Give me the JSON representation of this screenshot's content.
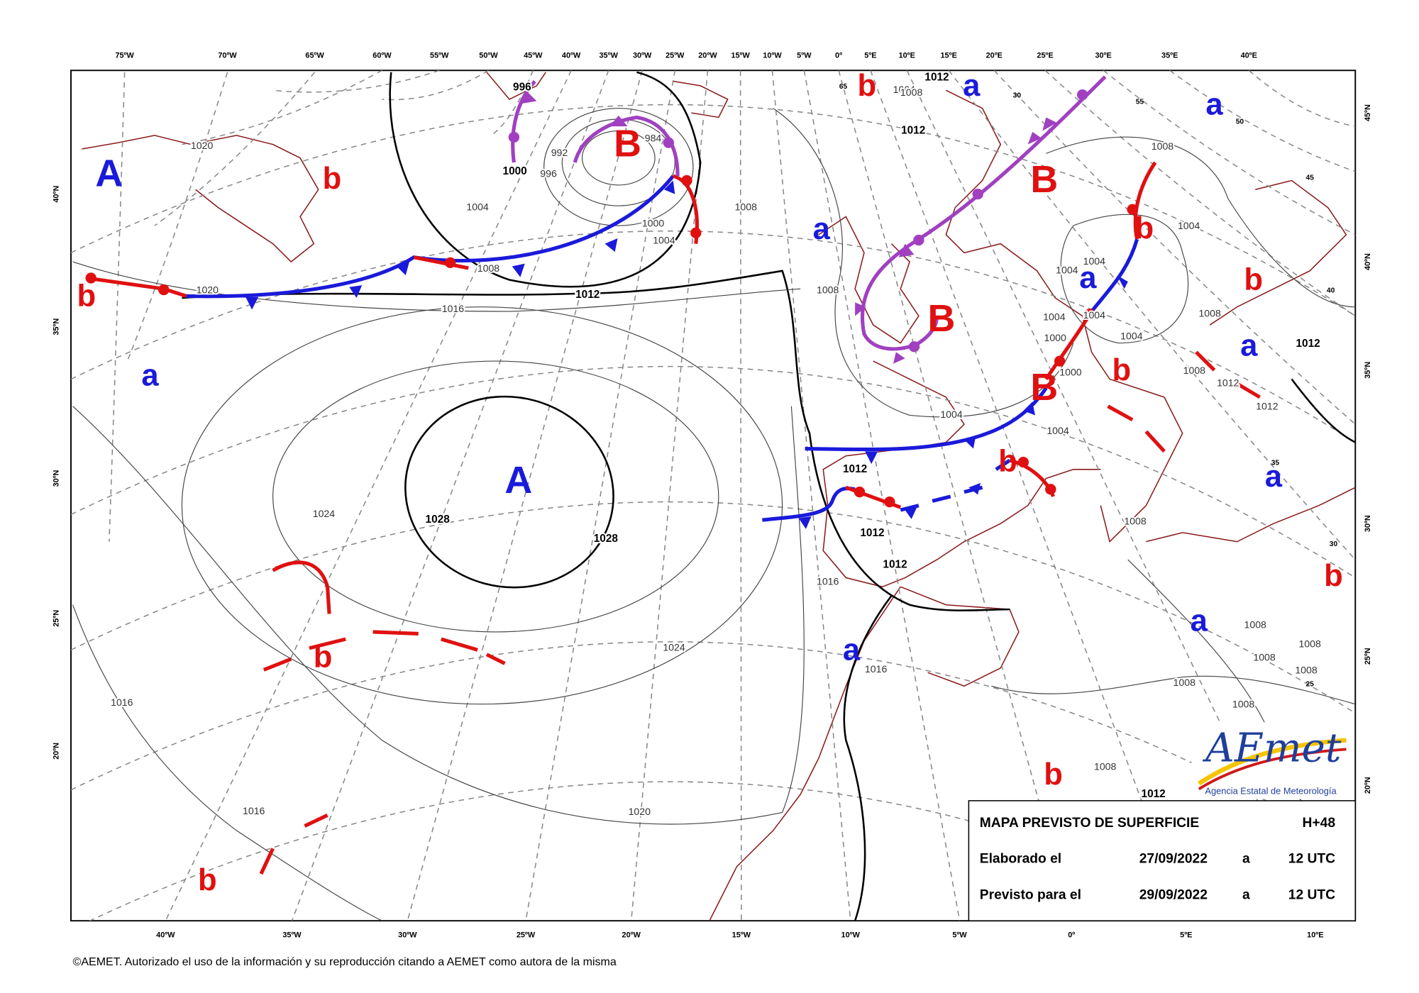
{
  "map": {
    "top_lon_labels": [
      "75ºW",
      "70ºW",
      "65ºW",
      "60ºW",
      "55ºW",
      "50ºW",
      "45ºW",
      "40ºW",
      "35ºW",
      "30ºW",
      "25ºW",
      "20ºW",
      "15ºW",
      "10ºW",
      "5ºW",
      "0º",
      "5ºE",
      "10ºE",
      "15ºE",
      "20ºE",
      "25ºE",
      "30ºE",
      "35ºE",
      "40ºE"
    ],
    "bottom_lon_labels": [
      "40ºW",
      "35ºW",
      "30ºW",
      "25ºW",
      "20ºW",
      "15ºW",
      "10ºW",
      "5ºW",
      "0º",
      "5ºE",
      "10ºE"
    ],
    "left_lat_labels": [
      "40ºN",
      "35ºN",
      "30ºN",
      "25ºN",
      "20ºN"
    ],
    "right_lat_labels": [
      "45ºN",
      "40ºN",
      "35ºN",
      "30ºN",
      "25ºN",
      "20ºN"
    ],
    "inner_lat_labels": [
      "65",
      "55",
      "50",
      "45",
      "40",
      "35",
      "30",
      "25",
      "30"
    ],
    "isobar_labels": [
      "1020",
      "1004",
      "1008",
      "1012",
      "1016",
      "1020",
      "1000",
      "1004",
      "1008",
      "992",
      "996",
      "984",
      "1000",
      "996",
      "1024",
      "1028",
      "1028",
      "1024",
      "1020",
      "1016",
      "1016",
      "1012",
      "1012",
      "1012",
      "1016",
      "1016",
      "1008",
      "1004",
      "1000",
      "1004",
      "1000",
      "1004",
      "1004",
      "1004",
      "1004",
      "1004",
      "1004",
      "1008",
      "1008",
      "1008",
      "1008",
      "1012",
      "1012",
      "1012",
      "1012",
      "1012",
      "1008",
      "1008",
      "1008",
      "1008",
      "1008",
      "1008",
      "1008",
      "1012",
      "1004",
      "1008"
    ],
    "centers": [
      "A",
      "b",
      "a",
      "b",
      "B",
      "A",
      "b",
      "b",
      "a",
      "b",
      "a",
      "B",
      "a",
      "b",
      "a",
      "b",
      "B",
      "a",
      "b",
      "B",
      "b",
      "a",
      "b",
      "a",
      "a",
      "b"
    ]
  },
  "info_box": {
    "title": "MAPA PREVISTO DE SUPERFICIE",
    "lead_time": "H+48",
    "rows": [
      [
        "Elaborado el",
        "27/09/2022",
        "a",
        "12 UTC"
      ],
      [
        "Previsto para el",
        "29/09/2022",
        "a",
        "12 UTC"
      ]
    ]
  },
  "logo": {
    "name": "AEmet",
    "agency": "Agencia Estatal de Meteorología"
  },
  "footer": "©AEMET. Autorizado el uso de la información y su reproducción citando a AEMET como autora de la misma"
}
